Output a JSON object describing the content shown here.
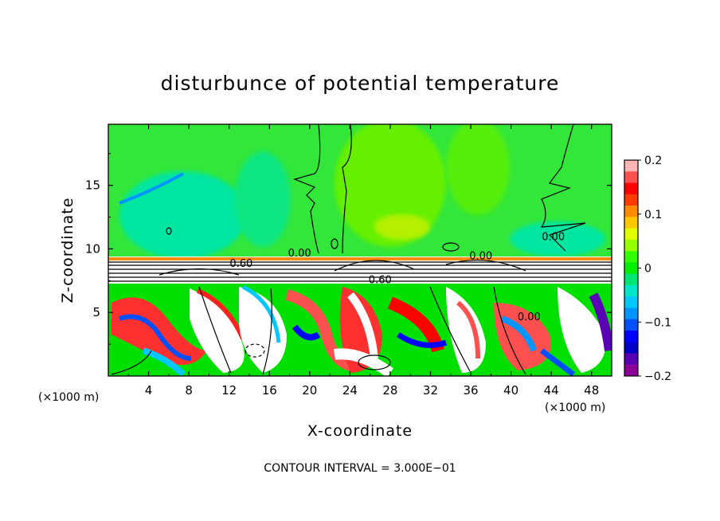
{
  "chart_data": {
    "type": "heatmap",
    "title": "disturbunce of potential temperature",
    "xlabel": "X-coordinate",
    "ylabel": "Z-coordinate",
    "x_unit_left": "(×1000 m)",
    "x_unit_right": "(×1000 m)",
    "xlim": [
      0,
      50
    ],
    "ylim": [
      0,
      19.8
    ],
    "x_ticks": [
      4,
      8,
      12,
      16,
      20,
      24,
      28,
      32,
      36,
      40,
      44,
      48
    ],
    "y_ticks": [
      5,
      10,
      15
    ],
    "colorbar": {
      "min": -0.2,
      "max": 0.2,
      "ticks": [
        "0.2",
        "0.1",
        "0",
        "−0.1",
        "−0.2"
      ],
      "tick_values": [
        0.2,
        0.1,
        0,
        -0.1,
        -0.2
      ],
      "colors_top_to_bottom": [
        "#ffb4b4",
        "#ff5050",
        "#ff0000",
        "#ff3c00",
        "#ff8c00",
        "#ffc800",
        "#e1ff00",
        "#96ff00",
        "#32ff00",
        "#00f000",
        "#00e673",
        "#00e6c8",
        "#00c8ff",
        "#0096ff",
        "#0050ff",
        "#0000ff",
        "#0000c8",
        "#5a00b4",
        "#8c0096"
      ]
    },
    "contour_labels": [
      {
        "text": "0.00",
        "x": 19.0,
        "z": 9.7
      },
      {
        "text": "0.00",
        "x": 44.2,
        "z": 11.0
      },
      {
        "text": "0.00",
        "x": 37.0,
        "z": 9.5
      },
      {
        "text": "0.60",
        "x": 13.2,
        "z": 8.9
      },
      {
        "text": "0.60",
        "x": 27.0,
        "z": 7.6
      },
      {
        "text": "0.00",
        "x": 41.8,
        "z": 4.7
      }
    ],
    "contour_interval_label": "CONTOUR INTERVAL = 3.000E−01"
  }
}
